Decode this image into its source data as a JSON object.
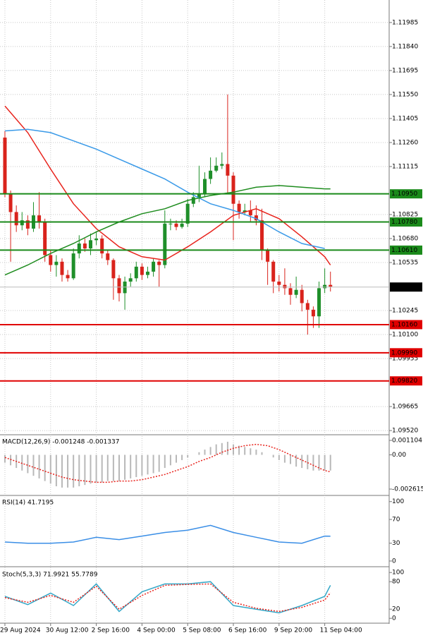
{
  "chart_data": [
    {
      "type": "candlestick",
      "xlim": [
        -0.86,
        67.28
      ],
      "ylim": [
        1.09499,
        1.12121
      ],
      "yticks": [
        {
          "value": 1.11985,
          "label": "1.11985"
        },
        {
          "value": 1.1184,
          "label": "1.11840"
        },
        {
          "value": 1.11695,
          "label": "1.11695"
        },
        {
          "value": 1.1155,
          "label": "1.11550"
        },
        {
          "value": 1.11405,
          "label": "1.11405"
        },
        {
          "value": 1.1126,
          "label": "1.11260"
        },
        {
          "value": 1.11115,
          "label": "1.11115"
        },
        {
          "value": 1.10825,
          "label": "1.10825"
        },
        {
          "value": 1.1068,
          "label": "1.10680"
        },
        {
          "value": 1.10535,
          "label": "1.10535"
        },
        {
          "value": 1.10245,
          "label": "1.10245"
        },
        {
          "value": 1.101,
          "label": "1.10100"
        },
        {
          "value": 1.09955,
          "label": "1.09955"
        },
        {
          "value": 1.09665,
          "label": "1.09665"
        },
        {
          "value": 1.0952,
          "label": "1.09520"
        }
      ],
      "xticks": [
        {
          "value": 0,
          "label": "29 Aug 2024"
        },
        {
          "value": 8,
          "label": "30 Aug 12:00"
        },
        {
          "value": 16,
          "label": "2 Sep 16:00"
        },
        {
          "value": 24,
          "label": "4 Sep 00:00"
        },
        {
          "value": 32,
          "label": "5 Sep 08:00"
        },
        {
          "value": 40,
          "label": "6 Sep 16:00"
        },
        {
          "value": 48,
          "label": "9 Sep 20:00"
        },
        {
          "value": 56,
          "label": "11 Sep 04:00"
        }
      ],
      "grid": true,
      "up_color": "#1f8f2a",
      "down_color": "#d9231c",
      "candles": [
        [
          1.1129,
          1.1133,
          1.1093,
          1.1095
        ],
        [
          1.1095,
          1.1097,
          1.1054,
          1.1084
        ],
        [
          1.1084,
          1.1088,
          1.1072,
          1.1076
        ],
        [
          1.1076,
          1.1084,
          1.1073,
          1.1079
        ],
        [
          1.1079,
          1.1082,
          1.107,
          1.1074
        ],
        [
          1.1074,
          1.109,
          1.1072,
          1.1082
        ],
        [
          1.1082,
          1.1096,
          1.1074,
          1.1078
        ],
        [
          1.1078,
          1.108,
          1.1054,
          1.1058
        ],
        [
          1.1058,
          1.1061,
          1.1048,
          1.1052
        ],
        [
          1.1052,
          1.1058,
          1.1045,
          1.1054
        ],
        [
          1.1054,
          1.1056,
          1.1042,
          1.1046
        ],
        [
          1.1046,
          1.1049,
          1.1042,
          1.1044
        ],
        [
          1.1044,
          1.1062,
          1.1043,
          1.1059
        ],
        [
          1.1059,
          1.107,
          1.1056,
          1.1065
        ],
        [
          1.1065,
          1.1068,
          1.106,
          1.1062
        ],
        [
          1.1062,
          1.1071,
          1.1058,
          1.1067
        ],
        [
          1.1067,
          1.1072,
          1.1064,
          1.1068
        ],
        [
          1.1068,
          1.107,
          1.1056,
          1.1059
        ],
        [
          1.1059,
          1.1061,
          1.1052,
          1.1055
        ],
        [
          1.1055,
          1.1056,
          1.1031,
          1.1044
        ],
        [
          1.1044,
          1.1046,
          1.103,
          1.1035
        ],
        [
          1.1035,
          1.1045,
          1.1025,
          1.1042
        ],
        [
          1.1042,
          1.1047,
          1.1039,
          1.1044
        ],
        [
          1.1044,
          1.1054,
          1.1042,
          1.1051
        ],
        [
          1.1051,
          1.1053,
          1.1043,
          1.1046
        ],
        [
          1.1046,
          1.1051,
          1.1044,
          1.1048
        ],
        [
          1.1048,
          1.1056,
          1.1045,
          1.1054
        ],
        [
          1.1054,
          1.1055,
          1.1039,
          1.1052
        ],
        [
          1.1052,
          1.1085,
          1.105,
          1.1077
        ],
        [
          1.1077,
          1.108,
          1.1073,
          1.1077
        ],
        [
          1.1077,
          1.1079,
          1.1073,
          1.1075
        ],
        [
          1.1075,
          1.108,
          1.1074,
          1.1077
        ],
        [
          1.1077,
          1.1092,
          1.1075,
          1.1089
        ],
        [
          1.1089,
          1.1096,
          1.1087,
          1.1093
        ],
        [
          1.1093,
          1.1112,
          1.109,
          1.1095
        ],
        [
          1.1095,
          1.1108,
          1.1093,
          1.1104
        ],
        [
          1.1104,
          1.1117,
          1.1101,
          1.1109
        ],
        [
          1.1109,
          1.1117,
          1.1108,
          1.1112
        ],
        [
          1.1112,
          1.112,
          1.111,
          1.1113
        ],
        [
          1.1113,
          1.1155,
          1.1095,
          1.1106
        ],
        [
          1.1106,
          1.1108,
          1.1067,
          1.1089
        ],
        [
          1.1089,
          1.1091,
          1.108,
          1.1084
        ],
        [
          1.1084,
          1.1089,
          1.1082,
          1.1085
        ],
        [
          1.1085,
          1.1091,
          1.1078,
          1.1082
        ],
        [
          1.1082,
          1.1088,
          1.1076,
          1.1079
        ],
        [
          1.1079,
          1.1086,
          1.1055,
          1.1061
        ],
        [
          1.1061,
          1.1062,
          1.104,
          1.1054
        ],
        [
          1.1054,
          1.1055,
          1.1035,
          1.1042
        ],
        [
          1.1042,
          1.1046,
          1.1036,
          1.104
        ],
        [
          1.104,
          1.105,
          1.1034,
          1.1038
        ],
        [
          1.1038,
          1.1041,
          1.1028,
          1.1034
        ],
        [
          1.1034,
          1.1045,
          1.1032,
          1.1037
        ],
        [
          1.1037,
          1.104,
          1.1024,
          1.1029
        ],
        [
          1.1029,
          1.1031,
          1.101,
          1.1025
        ],
        [
          1.1025,
          1.1027,
          1.1014,
          1.1021
        ],
        [
          1.1021,
          1.1042,
          1.1014,
          1.1038
        ],
        [
          1.1038,
          1.105,
          1.1035,
          1.104
        ],
        [
          1.104,
          1.1048,
          1.1036,
          1.1039
        ]
      ],
      "lines": [
        {
          "color": "#e8231c",
          "x": [
            0,
            4,
            8,
            12,
            16,
            20,
            24,
            28,
            32,
            36,
            40,
            44,
            48,
            52,
            56,
            57
          ],
          "values": [
            1.1148,
            1.1132,
            1.111,
            1.1089,
            1.1074,
            1.1063,
            1.1057,
            1.1055,
            1.1063,
            1.1072,
            1.1082,
            1.1086,
            1.108,
            1.1069,
            1.1057,
            1.1052
          ]
        },
        {
          "color": "#3a9ae8",
          "x": [
            0,
            4,
            8,
            12,
            16,
            20,
            24,
            28,
            32,
            36,
            40,
            44,
            48,
            52,
            56
          ],
          "values": [
            1.1133,
            1.1134,
            1.1132,
            1.1127,
            1.1122,
            1.1116,
            1.111,
            1.1104,
            1.1096,
            1.1089,
            1.1085,
            1.108,
            1.1072,
            1.1065,
            1.1062
          ]
        },
        {
          "color": "#1e8c1e",
          "x": [
            0,
            4,
            8,
            12,
            16,
            20,
            24,
            28,
            32,
            36,
            40,
            44,
            48,
            52,
            56,
            57
          ],
          "values": [
            1.1046,
            1.1052,
            1.1059,
            1.1065,
            1.1072,
            1.1078,
            1.1083,
            1.1086,
            1.1091,
            1.1094,
            1.1096,
            1.1099,
            1.11,
            1.1099,
            1.1098,
            1.1098
          ]
        }
      ],
      "levels": [
        {
          "value": 1.1095,
          "label": "1.10950",
          "color": "#1a8a1a"
        },
        {
          "value": 1.1078,
          "label": "1.10780",
          "color": "#1a8a1a"
        },
        {
          "value": 1.1061,
          "label": "1.10610",
          "color": "#1a8a1a"
        },
        {
          "value": 1.1016,
          "label": "1.10160",
          "color": "#e00000"
        },
        {
          "value": 1.0999,
          "label": "1.09990",
          "color": "#e00000"
        },
        {
          "value": 1.0982,
          "label": "1.09820",
          "color": "#e00000"
        }
      ],
      "last_price": 1.10387
    },
    {
      "type": "macd",
      "title": "MACD(12,26,9) -0.001248 -0.001337",
      "xlim": [
        -0.86,
        67.28
      ],
      "ylim": [
        -0.002992,
        0.001427
      ],
      "yticks": [
        0.001104,
        {
          "value": 0,
          "label": "0.00"
        },
        -0.002615
      ],
      "color": "#b8b8b8",
      "values": [
        -0.0006,
        -0.0008,
        -0.001,
        -0.0012,
        -0.0014,
        -0.0016,
        -0.0018,
        -0.002,
        -0.0022,
        -0.0024,
        -0.0025,
        -0.0025,
        -0.0025,
        -0.0024,
        -0.0023,
        -0.0022,
        -0.0021,
        -0.0021,
        -0.002,
        -0.002,
        -0.002,
        -0.0019,
        -0.0018,
        -0.0017,
        -0.0016,
        -0.0015,
        -0.0014,
        -0.0013,
        -0.001,
        -0.0008,
        -0.0006,
        -0.0004,
        -0.0002,
        0,
        0.0002,
        0.0004,
        0.0006,
        0.0008,
        0.0009,
        0.001,
        0.0008,
        0.0007,
        0.0006,
        0.0005,
        0.0004,
        0.0002,
        0,
        -0.0002,
        -0.0004,
        -0.0006,
        -0.0007,
        -0.0009,
        -0.001,
        -0.0011,
        -0.0012,
        -0.0012,
        -0.0012,
        -0.0012
      ],
      "series": [
        {
          "color": "#e8231c",
          "dashed": true,
          "x": [
            0,
            2,
            4,
            6,
            8,
            10,
            12,
            14,
            16,
            18,
            20,
            22,
            24,
            26,
            28,
            30,
            32,
            34,
            36,
            38,
            40,
            42,
            44,
            46,
            48,
            50,
            52,
            54,
            56,
            57
          ],
          "values": [
            -0.0002,
            -0.0005,
            -0.0008,
            -0.0011,
            -0.0014,
            -0.0017,
            -0.0019,
            -0.002,
            -0.0021,
            -0.0021,
            -0.002,
            -0.002,
            -0.0019,
            -0.0017,
            -0.0015,
            -0.0012,
            -0.0009,
            -0.0005,
            -0.0002,
            0.0002,
            0.0005,
            0.0007,
            0.0008,
            0.0007,
            0.0004,
            0,
            -0.0004,
            -0.0008,
            -0.0012,
            -0.0013
          ]
        }
      ]
    },
    {
      "type": "line",
      "title": "RSI(14) 41.7195",
      "xlim": [
        -0.86,
        67.28
      ],
      "ylim": [
        -6,
        108
      ],
      "yticks": [
        100,
        70,
        30,
        0
      ],
      "series": [
        {
          "color": "#3a8ee6",
          "dashed": false,
          "x": [
            0,
            4,
            8,
            12,
            16,
            20,
            24,
            28,
            32,
            36,
            40,
            44,
            48,
            52,
            56,
            57
          ],
          "values": [
            32,
            30,
            30,
            32,
            40,
            36,
            42,
            48,
            52,
            60,
            48,
            40,
            32,
            30,
            42,
            41.7
          ]
        }
      ]
    },
    {
      "type": "line",
      "title": "Stoch(5,3,3) 71.9921 55.7789",
      "xlim": [
        -0.86,
        67.28
      ],
      "ylim": [
        -9,
        108
      ],
      "yticks": [
        100,
        80,
        20,
        0
      ],
      "series": [
        {
          "color": "#35a8c8",
          "dashed": false,
          "x": [
            0,
            4,
            8,
            12,
            16,
            20,
            24,
            28,
            32,
            36,
            40,
            44,
            48,
            52,
            56,
            57
          ],
          "values": [
            48,
            30,
            55,
            28,
            75,
            15,
            58,
            75,
            75,
            80,
            28,
            20,
            12,
            28,
            48,
            72
          ]
        },
        {
          "color": "#e8231c",
          "dashed": true,
          "x": [
            0,
            4,
            8,
            12,
            16,
            20,
            24,
            28,
            32,
            36,
            40,
            44,
            48,
            52,
            56,
            57
          ],
          "values": [
            45,
            35,
            50,
            35,
            70,
            20,
            50,
            72,
            74,
            75,
            35,
            22,
            15,
            24,
            40,
            56
          ]
        }
      ]
    }
  ]
}
